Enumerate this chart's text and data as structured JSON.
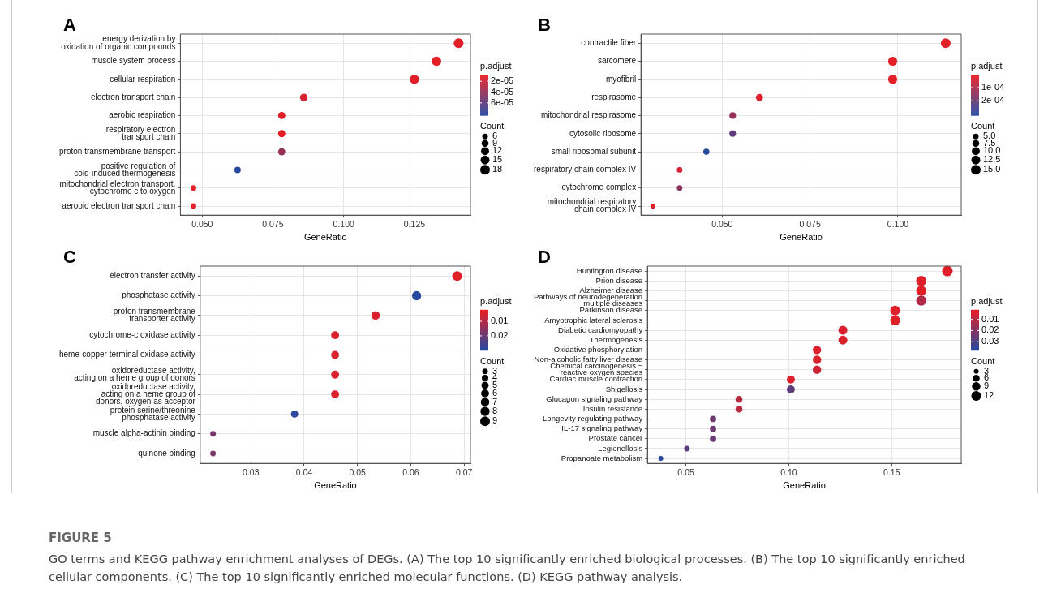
{
  "chart_data": [
    {
      "type": "bubble",
      "title": "A",
      "xlabel": "GeneRatio",
      "orientation": "horizontal",
      "grid": true,
      "clabel": "p.adjust",
      "legend_title": "Count",
      "categories": [
        "energy derivation by\noxidation of organic compounds",
        "muscle system process",
        "cellular respiration",
        "electron transport chain",
        "aerobic respiration",
        "respiratory electron\ntransport chain",
        "proton transmembrane transport",
        "positive regulation of\ncold-induced thermogenesis",
        "mitochondrial electron transport,\ncytochrome c to oxygen",
        "aerobic electron transport chain"
      ],
      "values": [
        0.1406,
        0.1328,
        0.125,
        0.0859,
        0.0781,
        0.0781,
        0.0781,
        0.0625,
        0.0469,
        0.0469
      ],
      "sizes": [
        18,
        17,
        16,
        11,
        10,
        10,
        10,
        8,
        6,
        6
      ],
      "cvalues": [
        1e-05,
        1e-05,
        1e-05,
        1.5e-05,
        1e-05,
        1e-05,
        4e-05,
        8.2e-05,
        1e-05,
        1e-05
      ],
      "xlim": [
        0.0423,
        0.1448
      ],
      "xticks": [
        {
          "value": 0.05,
          "label": "0.050"
        },
        {
          "value": 0.075,
          "label": "0.075"
        },
        {
          "value": 0.1,
          "label": "0.100"
        },
        {
          "value": 0.125,
          "label": "0.125"
        }
      ],
      "clim": [
        8e-06,
        8.3e-05
      ],
      "cticks": [
        {
          "value": 2e-05,
          "label": "2e-05"
        },
        {
          "value": 4e-05,
          "label": "4e-05"
        },
        {
          "value": 6e-05,
          "label": "6e-05"
        }
      ],
      "size_legend": [
        6,
        9,
        12,
        15,
        18
      ]
    },
    {
      "type": "bubble",
      "title": "B",
      "xlabel": "GeneRatio",
      "orientation": "horizontal",
      "grid": true,
      "clabel": "p.adjust",
      "legend_title": "Count",
      "categories": [
        "contractile fiber",
        "sarcomere",
        "myofibril",
        "respirasome",
        "mitochondrial respirasome",
        "cytosolic ribosome",
        "small ribosomal subunit",
        "respiratory chain complex IV",
        "cytochrome complex",
        "mitochondrial respiratory\nchain complex IV"
      ],
      "values": [
        0.1136,
        0.0985,
        0.0985,
        0.0606,
        0.053,
        0.053,
        0.0455,
        0.0379,
        0.0379,
        0.0303
      ],
      "sizes": [
        15,
        13,
        13,
        8,
        7,
        7,
        6,
        5,
        5,
        4
      ],
      "cvalues": [
        1e-05,
        1e-05,
        1e-05,
        2e-05,
        0.00013,
        0.00022,
        0.00031,
        3e-05,
        0.00015,
        3e-05
      ],
      "xlim": [
        0.0269,
        0.118
      ],
      "xticks": [
        {
          "value": 0.05,
          "label": "0.050"
        },
        {
          "value": 0.075,
          "label": "0.075"
        },
        {
          "value": 0.1,
          "label": "0.100"
        }
      ],
      "clim": [
        3e-06,
        0.00031
      ],
      "cticks": [
        {
          "value": 0.0001,
          "label": "1e-04"
        },
        {
          "value": 0.0002,
          "label": "2e-04"
        }
      ],
      "size_legend": [
        {
          "value": 5,
          "label": "5.0"
        },
        {
          "value": 7.5,
          "label": "7.5"
        },
        {
          "value": 10,
          "label": "10.0"
        },
        {
          "value": 12.5,
          "label": "12.5"
        },
        {
          "value": 15,
          "label": "15.0"
        }
      ]
    },
    {
      "type": "bubble",
      "title": "C",
      "xlabel": "GeneRatio",
      "orientation": "horizontal",
      "grid": true,
      "clabel": "p.adjust",
      "legend_title": "Count",
      "categories": [
        "electron transfer activity",
        "phosphatase activity",
        "proton transmembrane\ntransporter activity",
        "cytochrome-c oxidase activity",
        "heme-copper terminal oxidase activity",
        "oxidoreductase activity,\nacting on a heme group of donors",
        "oxidoreductase activity,\nacting on a heme group of\ndonors, oxygen as acceptor",
        "protein serine/threonine\nphosphatase activity",
        "muscle alpha-actinin binding",
        "quinone binding"
      ],
      "values": [
        0.0687,
        0.0611,
        0.0534,
        0.0458,
        0.0458,
        0.0458,
        0.0458,
        0.0382,
        0.0229,
        0.0229
      ],
      "sizes": [
        9,
        8,
        7,
        6,
        6,
        6,
        6,
        5,
        3,
        3
      ],
      "cvalues": [
        0.003,
        0.03,
        0.004,
        0.004,
        0.004,
        0.004,
        0.004,
        0.029,
        0.018,
        0.018
      ],
      "xlim": [
        0.0205,
        0.0712
      ],
      "xticks": [
        0.03,
        0.04,
        0.05,
        0.06,
        0.07
      ],
      "clim": [
        0.002,
        0.03
      ],
      "cticks": [
        0.01,
        0.02
      ],
      "size_legend": [
        3,
        4,
        5,
        6,
        7,
        8,
        9
      ]
    },
    {
      "type": "bubble",
      "title": "D",
      "xlabel": "GeneRatio",
      "orientation": "horizontal",
      "grid": true,
      "clabel": "p.adjust",
      "legend_title": "Count",
      "categories": [
        "Huntington disease",
        "Prion disease",
        "Alzheimer disease",
        "Pathways of neurodegeneration\n− multiple diseases",
        "Parkinson disease",
        "Amyotrophic lateral sclerosis",
        "Diabetic cardiomyopathy",
        "Thermogenesis",
        "Oxidative phosphorylation",
        "Non-alcoholic fatty liver disease",
        "Chemical carcinogenesis −\nreactive oxygen species",
        "Cardiac muscle contraction",
        "Shigellosis",
        "Glucagon signaling pathway",
        "Insulin resistance",
        "Longevity regulating pathway",
        "IL-17 signaling pathway",
        "Prostate cancer",
        "Legionellosis",
        "Propanoate metabolism"
      ],
      "values": [
        0.1771,
        0.1644,
        0.1644,
        0.1644,
        0.1517,
        0.1517,
        0.1263,
        0.1263,
        0.1137,
        0.1137,
        0.1137,
        0.101,
        0.101,
        0.0758,
        0.0758,
        0.0632,
        0.0632,
        0.0632,
        0.0505,
        0.0378
      ],
      "sizes": [
        14,
        13,
        13,
        13,
        12,
        12,
        10,
        10,
        9,
        9,
        9,
        8,
        8,
        6,
        6,
        5,
        5,
        5,
        4,
        3
      ],
      "cvalues": [
        0.003,
        0.003,
        0.003,
        0.012,
        0.003,
        0.003,
        0.004,
        0.004,
        0.004,
        0.004,
        0.007,
        0.004,
        0.027,
        0.01,
        0.01,
        0.024,
        0.024,
        0.025,
        0.028,
        0.037
      ],
      "xlim": [
        0.0313,
        0.1838
      ],
      "xticks": [
        {
          "value": 0.05,
          "label": "0.05"
        },
        {
          "value": 0.1,
          "label": "0.10"
        },
        {
          "value": 0.15,
          "label": "0.15"
        }
      ],
      "clim": [
        0.0015,
        0.0376
      ],
      "cticks": [
        0.01,
        0.02,
        0.03
      ],
      "size_legend": [
        3,
        6,
        9,
        12
      ],
      "annotations": [
        "FIGURE 5",
        "GO terms and KEGG pathway enrichment analyses of DEGs. (A) The top 10 significantly enriched biological processes. (B) The top 10 significantly enriched cellular components. (C) The top 10 significantly enriched molecular functions. (D) KEGG pathway analysis."
      ]
    }
  ]
}
